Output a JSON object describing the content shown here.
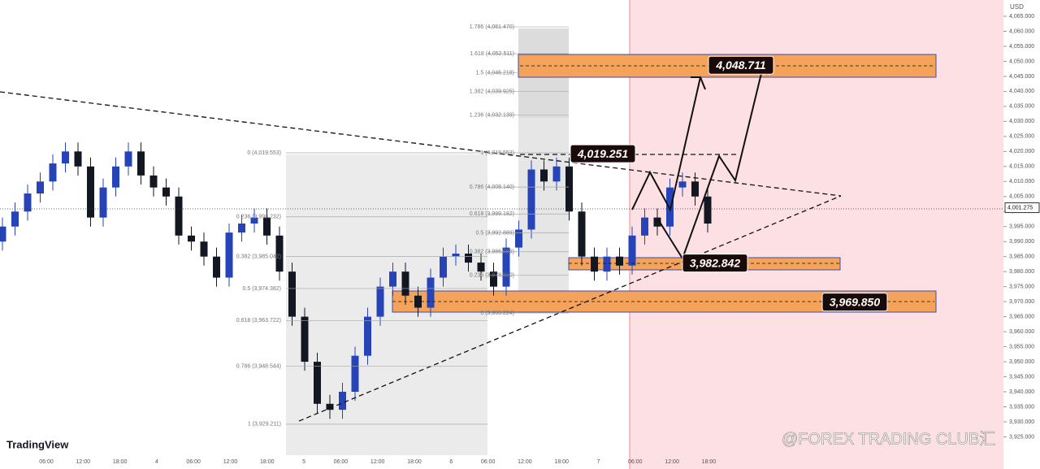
{
  "header": {
    "currency": "USD",
    "brand": "TradingView",
    "watermark": "@FOREX TRADING CLUB汇"
  },
  "chart_data": {
    "type": "candlestick",
    "open": [
      3990,
      3995,
      4000,
      4006,
      4010,
      4016,
      4020,
      4015,
      3998,
      4008,
      4015,
      4020,
      4012,
      4008,
      4005,
      3992,
      3990,
      3985,
      3978,
      3993,
      3996,
      3998,
      3992,
      3980,
      3965,
      3950,
      3936,
      3934,
      3940,
      3952,
      3965,
      3975,
      3980,
      3972,
      3968,
      3978,
      3985,
      3986,
      3983,
      3980,
      3975,
      3988,
      3994,
      4014,
      4010,
      4015,
      4000,
      3985,
      3980,
      3985,
      3982,
      3992,
      3998,
      3995,
      4008,
      4010,
      4005
    ],
    "high": [
      3998,
      4003,
      4009,
      4013,
      4019,
      4023,
      4023,
      4018,
      4011,
      4018,
      4023,
      4023,
      4015,
      4011,
      4008,
      3995,
      3993,
      3988,
      3996,
      3999,
      4001,
      4001,
      3995,
      3983,
      3968,
      3953,
      3939,
      3943,
      3955,
      3968,
      3978,
      3983,
      3983,
      3975,
      3981,
      3988,
      3989,
      3989,
      3986,
      3983,
      3991,
      3997,
      4017,
      4017,
      4018,
      4018,
      4003,
      3988,
      3988,
      3988,
      3995,
      4001,
      4001,
      4011,
      4013,
      4013,
      4008
    ],
    "low": [
      3987,
      3992,
      3997,
      4003,
      4007,
      4013,
      4012,
      3995,
      3995,
      4005,
      4012,
      4009,
      4005,
      4002,
      3989,
      3987,
      3982,
      3975,
      3975,
      3990,
      3993,
      3989,
      3977,
      3962,
      3947,
      3933,
      3931,
      3931,
      3937,
      3949,
      3962,
      3972,
      3969,
      3965,
      3965,
      3975,
      3982,
      3980,
      3977,
      3972,
      3972,
      3985,
      3991,
      4007,
      4007,
      3997,
      3982,
      3977,
      3977,
      3979,
      3979,
      3989,
      3992,
      3992,
      4005,
      4002,
      3993
    ],
    "close": [
      3995,
      4000,
      4006,
      4010,
      4016,
      4020,
      4015,
      3998,
      4008,
      4015,
      4020,
      4012,
      4008,
      4005,
      3992,
      3990,
      3985,
      3978,
      3993,
      3996,
      3998,
      3992,
      3980,
      3965,
      3950,
      3936,
      3934,
      3940,
      3952,
      3965,
      3975,
      3980,
      3972,
      3968,
      3978,
      3985,
      3986,
      3983,
      3980,
      3975,
      3988,
      3994,
      4014,
      4010,
      4015,
      4000,
      3985,
      3980,
      3985,
      3982,
      3992,
      3998,
      3995,
      4008,
      4010,
      4005,
      3996
    ],
    "up_color": "#2743b8",
    "down_color": "#131722",
    "ylim": [
      3914.3,
      4070.41
    ],
    "yticks": [
      {
        "value": 4065,
        "label": "4,065.000"
      },
      {
        "value": 4060,
        "label": "4,060.000"
      },
      {
        "value": 4055,
        "label": "4,055.000"
      },
      {
        "value": 4050,
        "label": "4,050.000"
      },
      {
        "value": 4045,
        "label": "4,045.000"
      },
      {
        "value": 4040,
        "label": "4,040.000"
      },
      {
        "value": 4035,
        "label": "4,035.000"
      },
      {
        "value": 4030,
        "label": "4,030.000"
      },
      {
        "value": 4025,
        "label": "4,025.000"
      },
      {
        "value": 4020,
        "label": "4,020.000"
      },
      {
        "value": 4015,
        "label": "4,015.000"
      },
      {
        "value": 4010,
        "label": "4,010.000"
      },
      {
        "value": 4005,
        "label": "4,005.000"
      },
      {
        "value": 4000,
        "label": "4,000.000"
      },
      {
        "value": 3995,
        "label": "3,995.000"
      },
      {
        "value": 3990,
        "label": "3,990.000"
      },
      {
        "value": 3985,
        "label": "3,985.000"
      },
      {
        "value": 3980,
        "label": "3,980.000"
      },
      {
        "value": 3975,
        "label": "3,975.000"
      },
      {
        "value": 3970,
        "label": "3,970.000"
      },
      {
        "value": 3965,
        "label": "3,965.000"
      },
      {
        "value": 3960,
        "label": "3,960.000"
      },
      {
        "value": 3955,
        "label": "3,955.000"
      },
      {
        "value": 3950,
        "label": "3,950.000"
      },
      {
        "value": 3945,
        "label": "3,945.000"
      },
      {
        "value": 3940,
        "label": "3,940.000"
      },
      {
        "value": 3935,
        "label": "3,935.000"
      },
      {
        "value": 3930,
        "label": "3,930.000"
      },
      {
        "value": 3925,
        "label": "3,925.000"
      }
    ],
    "xticks": [
      "06:00",
      "12:00",
      "18:00",
      "4",
      "06:00",
      "12:00",
      "18:00",
      "5",
      "06:00",
      "12:00",
      "18:00",
      "6",
      "06:00",
      "12:00",
      "18:00",
      "7",
      "06:00",
      "12:00",
      "18:00"
    ],
    "current_price": {
      "value": 4001.275,
      "label": "4,001.275"
    },
    "fib_left": [
      {
        "value": 4019.553,
        "label": "0 (4,019.553)"
      },
      {
        "value": 3998.232,
        "label": "0.236 (3,998.232)"
      },
      {
        "value": 3985.042,
        "label": "0.382 (3,985.042)"
      },
      {
        "value": 3974.382,
        "label": "0.5 (3,974.382)"
      },
      {
        "value": 3963.722,
        "label": "0.618 (3,963.722)"
      },
      {
        "value": 3948.544,
        "label": "0.786 (3,948.544)"
      },
      {
        "value": 3929.211,
        "label": "1 (3,929.211)"
      }
    ],
    "fib_right": [
      {
        "value": 4061.47,
        "label": "1.786 (4,061.470)"
      },
      {
        "value": 4052.511,
        "label": "1.618 (4,052.511)"
      },
      {
        "value": 4046.218,
        "label": "1.5 (4,046.218)"
      },
      {
        "value": 4039.925,
        "label": "1.382 (4,039.925)"
      },
      {
        "value": 4032.139,
        "label": "1.236 (4,032.139)"
      },
      {
        "value": 4019.553,
        "label": "1 (4,019.553)"
      },
      {
        "value": 4008.14,
        "label": "0.786 (4,008.140)"
      },
      {
        "value": 3999.182,
        "label": "0.618 (3,999.182)"
      },
      {
        "value": 3992.889,
        "label": "0.5 (3,992.889)"
      },
      {
        "value": 3986.596,
        "label": "0.382 (3,986.596)"
      },
      {
        "value": 3978.81,
        "label": "0.236 (3,978.810)"
      },
      {
        "value": 3966.224,
        "label": "0 (3,966.224)"
      }
    ],
    "annotations": [
      {
        "value": 4048.711,
        "label": "4,048.711"
      },
      {
        "value": 4019.251,
        "label": "4,019.251"
      },
      {
        "value": 3982.842,
        "label": "3,982.842"
      },
      {
        "value": 3969.85,
        "label": "3,969.850"
      }
    ]
  }
}
